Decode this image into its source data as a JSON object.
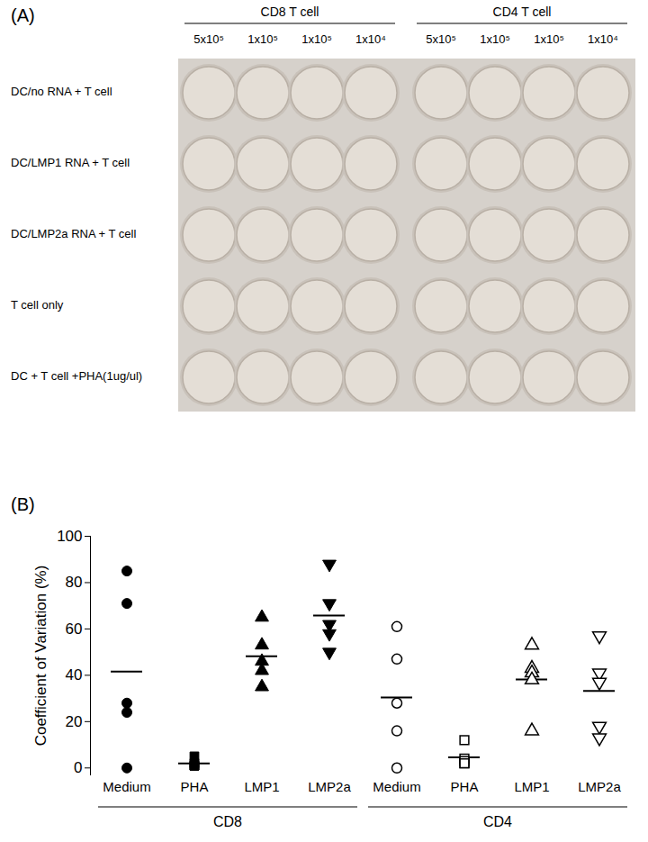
{
  "panel_a": {
    "label": "(A)",
    "groups": [
      {
        "label": "CD8 T cell",
        "columns": [
          "5x10⁵",
          "1x10⁵",
          "1x10⁵",
          "1x10⁴"
        ]
      },
      {
        "label": "CD4 T cell",
        "columns": [
          "5x10⁵",
          "1x10⁵",
          "1x10⁵",
          "1x10⁴"
        ]
      }
    ],
    "rows": [
      "DC/no RNA + T cell",
      "DC/LMP1 RNA + T cell",
      "DC/LMP2a RNA + T cell",
      "T cell only",
      "DC + T cell +PHA(1ug/ul)"
    ]
  },
  "chart_data": {
    "type": "scatter",
    "title": "(B)",
    "y_label": "Coefficient of Variation (%)",
    "categories": [
      "Medium",
      "PHA",
      "LMP1",
      "LMP2a",
      "Medium",
      "PHA",
      "LMP1",
      "LMP2a"
    ],
    "groups": [
      "CD8",
      "CD8",
      "CD8",
      "CD8",
      "CD4",
      "CD4",
      "CD4",
      "CD4"
    ],
    "values": [
      [
        85,
        71,
        28,
        24,
        0
      ],
      [
        5,
        2,
        1,
        1,
        1
      ],
      [
        65,
        53,
        46,
        42,
        35
      ],
      [
        88,
        71,
        62,
        58,
        50
      ],
      [
        61,
        47,
        28,
        16,
        0
      ],
      [
        12,
        4,
        3,
        2,
        2
      ],
      [
        53,
        43,
        41,
        38,
        16
      ],
      [
        57,
        41,
        37,
        18,
        13
      ]
    ],
    "means": [
      41.6,
      2,
      48.2,
      65.8,
      30.4,
      4.6,
      38.2,
      33.2
    ],
    "markers": [
      "circle",
      "square",
      "triangle-up",
      "triangle-down",
      "circle-open",
      "square-open",
      "triangle-up-open",
      "triangle-down-open"
    ],
    "color": "#000000",
    "ylim": [
      -3,
      100
    ],
    "yticks": [
      0,
      20,
      40,
      60,
      80,
      100
    ]
  }
}
